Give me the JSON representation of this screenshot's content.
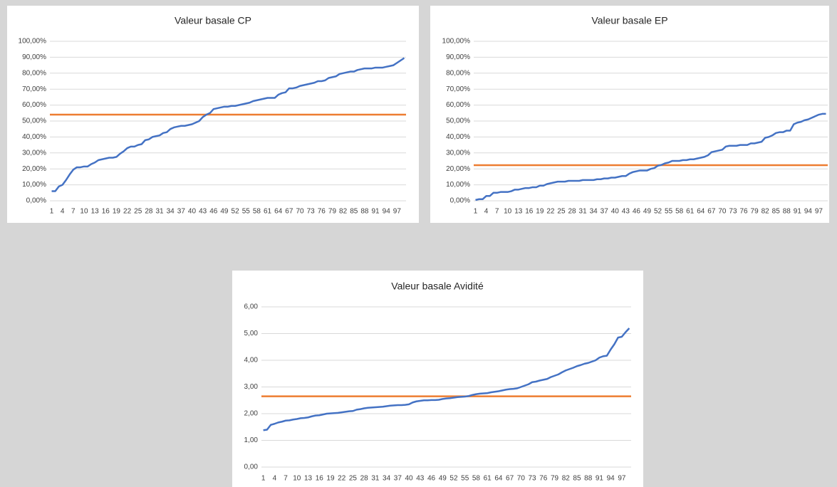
{
  "chart_data": [
    {
      "type": "line",
      "title": "Valeur basale CP",
      "categories": [
        1,
        null,
        null,
        4,
        null,
        null,
        7,
        null,
        null,
        10,
        null,
        null,
        13,
        null,
        null,
        16,
        null,
        null,
        19,
        null,
        null,
        22,
        null,
        null,
        25,
        null,
        null,
        28,
        null,
        null,
        31,
        null,
        null,
        34,
        null,
        null,
        37,
        null,
        null,
        40,
        null,
        null,
        43,
        null,
        null,
        46,
        null,
        null,
        49,
        null,
        null,
        52,
        null,
        null,
        55,
        null,
        null,
        58,
        null,
        null,
        61,
        null,
        null,
        64,
        null,
        null,
        67,
        null,
        null,
        70,
        null,
        null,
        73,
        null,
        null,
        76,
        null,
        null,
        79,
        null,
        null,
        82,
        null,
        null,
        85,
        null,
        null,
        88,
        null,
        null,
        91,
        null,
        null,
        94,
        null,
        null,
        97,
        null,
        null
      ],
      "series": [
        {
          "color": "#4472c4",
          "values": [
            6,
            6,
            9,
            10,
            13,
            16.5,
            19.5,
            21,
            21,
            21.5,
            21.5,
            23,
            24,
            25.5,
            26,
            26.5,
            27,
            27,
            27.5,
            29.5,
            31,
            33,
            34,
            34,
            35,
            35.5,
            38,
            38.5,
            40,
            40.5,
            41,
            42.5,
            43,
            45,
            46,
            46.5,
            47,
            47,
            47.5,
            48,
            49,
            50,
            52.5,
            54,
            55,
            57.5,
            58,
            58.5,
            59,
            59,
            59.5,
            59.5,
            60,
            60.5,
            61,
            61.5,
            62.5,
            63,
            63.5,
            64,
            64.5,
            64.5,
            64.5,
            66.5,
            67.5,
            68,
            70.5,
            70.5,
            71,
            72,
            72.5,
            73,
            73.5,
            74,
            75,
            75,
            75.5,
            77,
            77.5,
            78,
            79.5,
            80,
            80.5,
            81,
            81,
            82,
            82.5,
            83,
            83,
            83,
            83.5,
            83.5,
            83.5,
            84,
            84.5,
            85,
            86.5,
            88,
            89.5
          ]
        }
      ],
      "hline": {
        "value": 54,
        "color": "#ed7d31"
      },
      "ylim": [
        0,
        100
      ],
      "yticks": [
        {
          "value": 0,
          "label": "0,00%"
        },
        {
          "value": 10,
          "label": "10,00%"
        },
        {
          "value": 20,
          "label": "20,00%"
        },
        {
          "value": 30,
          "label": "30,00%"
        },
        {
          "value": 40,
          "label": "40,00%"
        },
        {
          "value": 50,
          "label": "50,00%"
        },
        {
          "value": 60,
          "label": "60,00%"
        },
        {
          "value": 70,
          "label": "70,00%"
        },
        {
          "value": 80,
          "label": "80,00%"
        },
        {
          "value": 90,
          "label": "90,00%"
        },
        {
          "value": 100,
          "label": "100,00%"
        }
      ],
      "grid": true
    },
    {
      "type": "line",
      "title": "Valeur basale EP",
      "categories": [
        1,
        null,
        null,
        4,
        null,
        null,
        7,
        null,
        null,
        10,
        null,
        null,
        13,
        null,
        null,
        16,
        null,
        null,
        19,
        null,
        null,
        22,
        null,
        null,
        25,
        null,
        null,
        28,
        null,
        null,
        31,
        null,
        null,
        34,
        null,
        null,
        37,
        null,
        null,
        40,
        null,
        null,
        43,
        null,
        null,
        46,
        null,
        null,
        49,
        null,
        null,
        52,
        null,
        null,
        55,
        null,
        null,
        58,
        null,
        null,
        61,
        null,
        null,
        64,
        null,
        null,
        67,
        null,
        null,
        70,
        null,
        null,
        73,
        null,
        null,
        76,
        null,
        null,
        79,
        null,
        null,
        82,
        null,
        null,
        85,
        null,
        null,
        88,
        null,
        null,
        91,
        null,
        null,
        94,
        null,
        null,
        97,
        null,
        null
      ],
      "series": [
        {
          "color": "#4472c4",
          "values": [
            0.5,
            1,
            1,
            3,
            3,
            5,
            5,
            5.5,
            5.5,
            5.5,
            6,
            7,
            7,
            7.5,
            8,
            8,
            8.5,
            8.5,
            9.5,
            9.5,
            10.5,
            11,
            11.5,
            12,
            12,
            12,
            12.5,
            12.5,
            12.5,
            12.5,
            13,
            13,
            13,
            13,
            13.5,
            13.5,
            14,
            14,
            14.5,
            14.5,
            15,
            15.5,
            15.5,
            17,
            18,
            18.5,
            19,
            19,
            19,
            20,
            20.5,
            22,
            22.5,
            23.5,
            24,
            25,
            25,
            25,
            25.5,
            25.5,
            26,
            26,
            26.5,
            27,
            27.5,
            28.5,
            30.5,
            31,
            31.5,
            32,
            34,
            34.5,
            34.5,
            34.5,
            35,
            35,
            35,
            36,
            36,
            36.5,
            37,
            39.5,
            40,
            41,
            42.5,
            43,
            43,
            44,
            44,
            48,
            49,
            49.5,
            50.5,
            51,
            52,
            53,
            54,
            54.5,
            54.5
          ]
        }
      ],
      "hline": {
        "value": 22.3,
        "color": "#ed7d31"
      },
      "ylim": [
        0,
        100
      ],
      "yticks": [
        {
          "value": 0,
          "label": "0,00%"
        },
        {
          "value": 10,
          "label": "10,00%"
        },
        {
          "value": 20,
          "label": "20,00%"
        },
        {
          "value": 30,
          "label": "30,00%"
        },
        {
          "value": 40,
          "label": "40,00%"
        },
        {
          "value": 50,
          "label": "50,00%"
        },
        {
          "value": 60,
          "label": "60,00%"
        },
        {
          "value": 70,
          "label": "70,00%"
        },
        {
          "value": 80,
          "label": "80,00%"
        },
        {
          "value": 90,
          "label": "90,00%"
        },
        {
          "value": 100,
          "label": "100,00%"
        }
      ],
      "grid": true
    },
    {
      "type": "line",
      "title": "Valeur basale Avidité",
      "categories": [
        1,
        null,
        null,
        4,
        null,
        null,
        7,
        null,
        null,
        10,
        null,
        null,
        13,
        null,
        null,
        16,
        null,
        null,
        19,
        null,
        null,
        22,
        null,
        null,
        25,
        null,
        null,
        28,
        null,
        null,
        31,
        null,
        null,
        34,
        null,
        null,
        37,
        null,
        null,
        40,
        null,
        null,
        43,
        null,
        null,
        46,
        null,
        null,
        49,
        null,
        null,
        52,
        null,
        null,
        55,
        null,
        null,
        58,
        null,
        null,
        61,
        null,
        null,
        64,
        null,
        null,
        67,
        null,
        null,
        70,
        null,
        null,
        73,
        null,
        null,
        76,
        null,
        null,
        79,
        null,
        null,
        82,
        null,
        null,
        85,
        null,
        null,
        88,
        null,
        null,
        91,
        null,
        null,
        94,
        null,
        null,
        97,
        null,
        null
      ],
      "series": [
        {
          "color": "#4472c4",
          "values": [
            1.38,
            1.4,
            1.58,
            1.62,
            1.67,
            1.7,
            1.74,
            1.75,
            1.78,
            1.8,
            1.83,
            1.84,
            1.86,
            1.9,
            1.93,
            1.94,
            1.97,
            2.0,
            2.01,
            2.02,
            2.03,
            2.05,
            2.07,
            2.09,
            2.1,
            2.15,
            2.17,
            2.2,
            2.22,
            2.23,
            2.24,
            2.25,
            2.26,
            2.28,
            2.3,
            2.31,
            2.32,
            2.32,
            2.33,
            2.35,
            2.42,
            2.46,
            2.48,
            2.5,
            2.5,
            2.51,
            2.51,
            2.52,
            2.55,
            2.57,
            2.58,
            2.6,
            2.62,
            2.63,
            2.64,
            2.66,
            2.7,
            2.73,
            2.75,
            2.76,
            2.77,
            2.8,
            2.82,
            2.84,
            2.87,
            2.9,
            2.92,
            2.93,
            2.95,
            3.0,
            3.05,
            3.1,
            3.18,
            3.2,
            3.24,
            3.27,
            3.3,
            3.37,
            3.42,
            3.47,
            3.55,
            3.62,
            3.67,
            3.72,
            3.78,
            3.82,
            3.87,
            3.9,
            3.95,
            4.0,
            4.1,
            4.15,
            4.17,
            4.4,
            4.6,
            4.85,
            4.88,
            5.05,
            5.2
          ]
        }
      ],
      "hline": {
        "value": 2.65,
        "color": "#ed7d31"
      },
      "ylim": [
        0,
        6
      ],
      "yticks": [
        {
          "value": 0,
          "label": "0,00"
        },
        {
          "value": 1,
          "label": "1,00"
        },
        {
          "value": 2,
          "label": "2,00"
        },
        {
          "value": 3,
          "label": "3,00"
        },
        {
          "value": 4,
          "label": "4,00"
        },
        {
          "value": 5,
          "label": "5,00"
        },
        {
          "value": 6,
          "label": "6,00"
        }
      ],
      "grid": true
    }
  ]
}
